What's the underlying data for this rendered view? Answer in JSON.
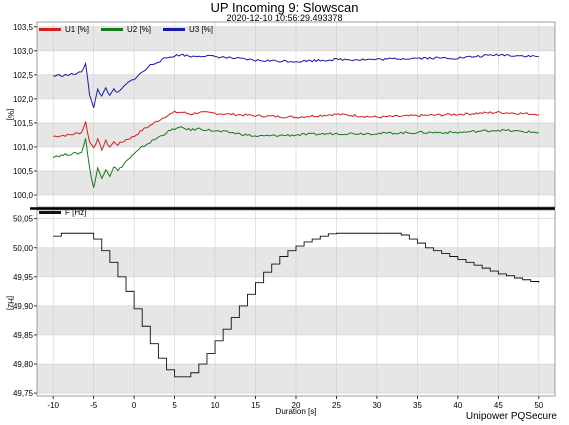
{
  "title": "UP Incoming 9: Slowscan",
  "subtitle": "2020-12-10 10:56:29.493378",
  "footer": "Unipower PQSecure",
  "colors": {
    "U1": "#d42020",
    "U2": "#1a7a1a",
    "U3": "#1a1aaa",
    "F": "#111111",
    "band": "#e6e6e6",
    "grid": "#cfcfcf",
    "frame": "#000000"
  },
  "chart_data": [
    {
      "type": "line",
      "xlabel": "",
      "ylabel": "[%]",
      "xlim": [
        -12,
        52
      ],
      "ylim": [
        99.75,
        103.6
      ],
      "yticks": [
        "100,0",
        "100,5",
        "101,0",
        "101,5",
        "102,0",
        "102,5",
        "103,0",
        "103,5"
      ],
      "ytick_values": [
        100.0,
        100.5,
        101.0,
        101.5,
        102.0,
        102.5,
        103.0,
        103.5
      ],
      "legend_position": "top-left",
      "series": [
        {
          "name": "U1 [%]",
          "x": [
            -10,
            -8,
            -6.5,
            -6,
            -5.5,
            -5,
            -4.5,
            -4,
            -3.5,
            -3,
            -2.5,
            -2,
            -1,
            0,
            1,
            2,
            3,
            4,
            5,
            6,
            7,
            8,
            10,
            12,
            15,
            20,
            25,
            30,
            35,
            40,
            45,
            50
          ],
          "y": [
            101.22,
            101.25,
            101.3,
            101.52,
            101.1,
            101.0,
            101.15,
            100.95,
            101.12,
            101.0,
            101.1,
            101.05,
            101.15,
            101.22,
            101.35,
            101.45,
            101.55,
            101.65,
            101.72,
            101.72,
            101.68,
            101.72,
            101.7,
            101.68,
            101.65,
            101.62,
            101.68,
            101.62,
            101.65,
            101.68,
            101.72,
            101.68
          ]
        },
        {
          "name": "U2 [%]",
          "x": [
            -10,
            -8,
            -6.5,
            -6,
            -5.5,
            -5,
            -4.5,
            -4,
            -3.5,
            -3,
            -2.5,
            -2,
            -1,
            0,
            1,
            2,
            3,
            4,
            5,
            6,
            7,
            8,
            10,
            12,
            15,
            20,
            25,
            30,
            35,
            40,
            45,
            50
          ],
          "y": [
            100.8,
            100.85,
            100.88,
            101.18,
            100.55,
            100.15,
            100.55,
            100.35,
            100.55,
            100.4,
            100.6,
            100.5,
            100.7,
            100.85,
            101.0,
            101.1,
            101.2,
            101.3,
            101.38,
            101.4,
            101.35,
            101.38,
            101.33,
            101.3,
            101.22,
            101.25,
            101.28,
            101.28,
            101.3,
            101.3,
            101.35,
            101.3
          ]
        },
        {
          "name": "U3 [%]",
          "x": [
            -10,
            -8,
            -6.5,
            -6,
            -5.5,
            -5,
            -4.5,
            -4,
            -3.5,
            -3,
            -2.5,
            -2,
            -1,
            0,
            1,
            2,
            3,
            4,
            5,
            6,
            7,
            8,
            10,
            12,
            15,
            20,
            25,
            30,
            35,
            40,
            45,
            50
          ],
          "y": [
            102.48,
            102.5,
            102.55,
            102.75,
            102.1,
            101.8,
            102.2,
            102.05,
            102.25,
            102.05,
            102.2,
            102.12,
            102.3,
            102.42,
            102.55,
            102.7,
            102.78,
            102.85,
            102.9,
            102.92,
            102.88,
            102.9,
            102.88,
            102.85,
            102.8,
            102.78,
            102.82,
            102.82,
            102.85,
            102.85,
            102.92,
            102.88
          ]
        }
      ]
    },
    {
      "type": "line",
      "xlabel": "Duration [s]",
      "ylabel": "[Hz]",
      "xlim": [
        -12,
        52
      ],
      "ylim": [
        49.745,
        50.065
      ],
      "xticks": [
        "-10",
        "-5",
        "0",
        "5",
        "10",
        "15",
        "20",
        "25",
        "30",
        "35",
        "40",
        "45",
        "50"
      ],
      "xtick_values": [
        -10,
        -5,
        0,
        5,
        10,
        15,
        20,
        25,
        30,
        35,
        40,
        45,
        50
      ],
      "yticks": [
        "49,75",
        "49,80",
        "49,85",
        "49,90",
        "49,95",
        "50,00",
        "50,05"
      ],
      "ytick_values": [
        49.75,
        49.8,
        49.85,
        49.9,
        49.95,
        50.0,
        50.05
      ],
      "legend_position": "top-left",
      "series": [
        {
          "name": "F [Hz]",
          "x": [
            -10,
            -9,
            -8,
            -7,
            -6,
            -5,
            -4,
            -3,
            -2,
            -1,
            0,
            1,
            2,
            3,
            4,
            5,
            6,
            7,
            8,
            9,
            10,
            11,
            12,
            13,
            14,
            15,
            16,
            17,
            18,
            19,
            20,
            21,
            22,
            23,
            24,
            25,
            26,
            27,
            28,
            29,
            30,
            31,
            32,
            33,
            34,
            35,
            36,
            37,
            38,
            39,
            40,
            41,
            42,
            43,
            44,
            45,
            46,
            47,
            48,
            49,
            50
          ],
          "y": [
            50.02,
            50.025,
            50.025,
            50.025,
            50.025,
            50.015,
            49.995,
            49.975,
            49.95,
            49.925,
            49.895,
            49.865,
            49.835,
            49.81,
            49.79,
            49.778,
            49.778,
            49.785,
            49.8,
            49.818,
            49.84,
            49.86,
            49.88,
            49.9,
            49.92,
            49.94,
            49.958,
            49.972,
            49.985,
            49.995,
            50.003,
            50.01,
            50.015,
            50.02,
            50.024,
            50.025,
            50.025,
            50.025,
            50.025,
            50.025,
            50.025,
            50.025,
            50.025,
            50.022,
            50.015,
            50.008,
            50.0,
            49.995,
            49.99,
            49.985,
            49.98,
            49.975,
            49.97,
            49.965,
            49.96,
            49.955,
            49.952,
            49.948,
            49.945,
            49.942,
            49.94
          ]
        }
      ]
    }
  ]
}
